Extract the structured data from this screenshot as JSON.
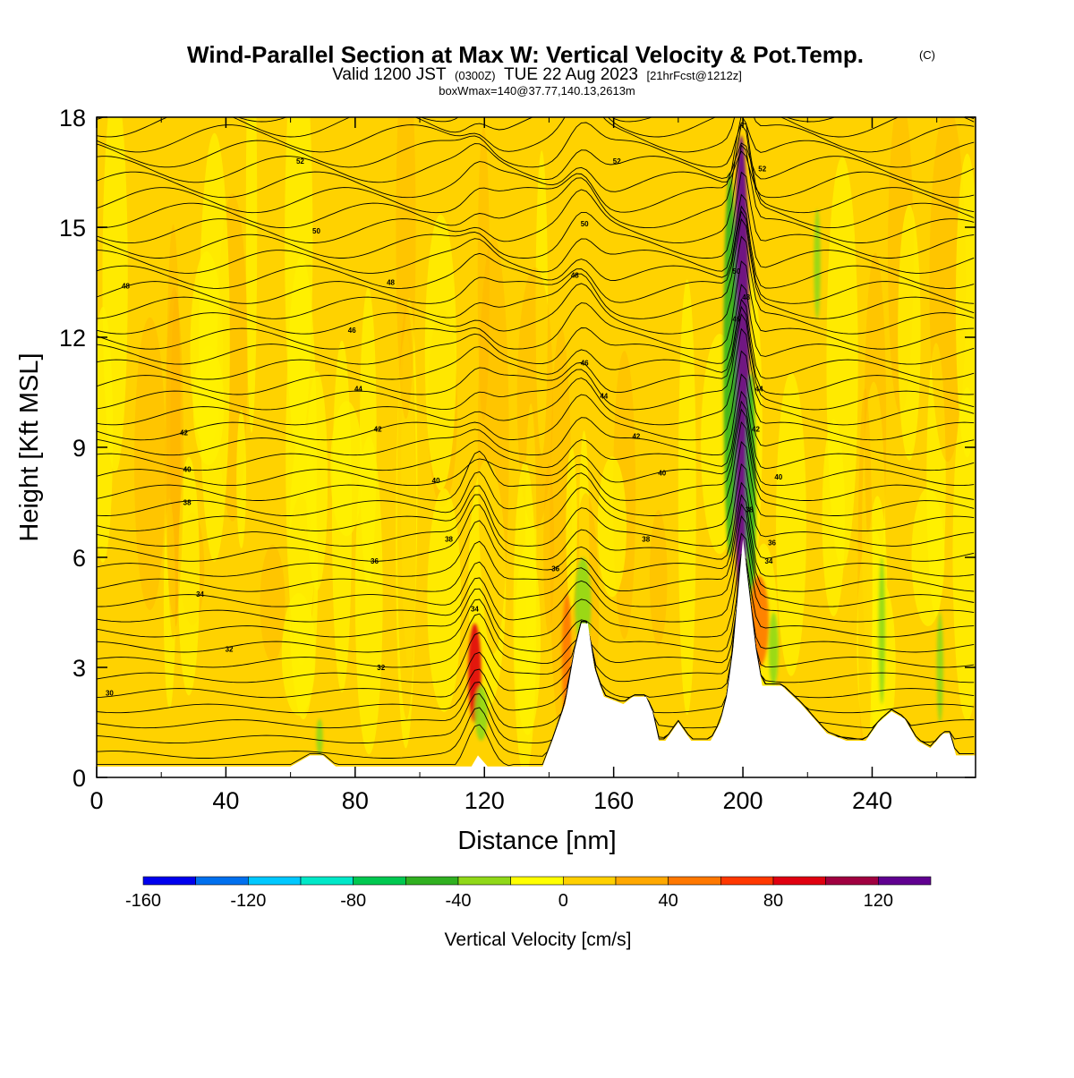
{
  "header": {
    "title": "Wind-Parallel Section at Max W: Vertical Velocity & Pot.Temp.",
    "title_mark": "(C)",
    "valid_main": "Valid 1200 JST",
    "valid_zulu": "(0300Z)",
    "valid_date": "TUE 22 Aug 2023",
    "forecast": "[21hrFcst@1212z]",
    "boxinfo": "boxWmax=140@37.77,140.13,2613m"
  },
  "chart_data": {
    "type": "heatmap",
    "xlabel": "Distance [nm]",
    "ylabel": "Height [Kft MSL]",
    "xlim": [
      0,
      272
    ],
    "ylim": [
      0,
      18
    ],
    "x_ticks": [
      "0",
      "40",
      "80",
      "120",
      "160",
      "200",
      "240"
    ],
    "y_ticks": [
      "0",
      "3",
      "6",
      "9",
      "12",
      "15",
      "18"
    ],
    "colorbar": {
      "title": "Vertical Velocity [cm/s]",
      "bounds": [
        -160,
        -140,
        -120,
        -100,
        -80,
        -60,
        -40,
        -20,
        0,
        20,
        40,
        60,
        80,
        100,
        120,
        140
      ],
      "labels": [
        "-160",
        "-120",
        "-80",
        "-40",
        "0",
        "40",
        "80",
        "120"
      ],
      "colors": [
        "#0000ee",
        "#0070ee",
        "#00c8ff",
        "#00e8c8",
        "#00c850",
        "#30b020",
        "#90d818",
        "#ffff00",
        "#ffd000",
        "#ffa800",
        "#ff7800",
        "#ff3800",
        "#e00010",
        "#a00040",
        "#600090"
      ]
    },
    "background_color": "#ffd200",
    "terrain_top_kft": [
      [
        0,
        0.3
      ],
      [
        60,
        0.3
      ],
      [
        66,
        0.6
      ],
      [
        70,
        0.6
      ],
      [
        74,
        0.3
      ],
      [
        116,
        0.3
      ],
      [
        118,
        0.6
      ],
      [
        121,
        0.3
      ],
      [
        138,
        0.3
      ],
      [
        141,
        1.0
      ],
      [
        145,
        2.0
      ],
      [
        148,
        3.5
      ],
      [
        150,
        4.2
      ],
      [
        152,
        4.2
      ],
      [
        154,
        3.0
      ],
      [
        157,
        2.2
      ],
      [
        163,
        2.0
      ],
      [
        166,
        2.2
      ],
      [
        170,
        2.2
      ],
      [
        172,
        1.8
      ],
      [
        174,
        1.0
      ],
      [
        176,
        1.0
      ],
      [
        180,
        1.5
      ],
      [
        184,
        1.0
      ],
      [
        190,
        1.0
      ],
      [
        193,
        1.5
      ],
      [
        195,
        2.2
      ],
      [
        197,
        3.5
      ],
      [
        199,
        5.5
      ],
      [
        200,
        6.5
      ],
      [
        202,
        5.0
      ],
      [
        204,
        3.5
      ],
      [
        206,
        2.5
      ],
      [
        210,
        2.5
      ],
      [
        212,
        2.5
      ],
      [
        218,
        2.0
      ],
      [
        222,
        1.6
      ],
      [
        226,
        1.2
      ],
      [
        232,
        1.0
      ],
      [
        238,
        1.0
      ],
      [
        242,
        1.5
      ],
      [
        246,
        1.8
      ],
      [
        250,
        1.6
      ],
      [
        254,
        1.0
      ],
      [
        258,
        0.8
      ],
      [
        262,
        1.2
      ],
      [
        264,
        1.2
      ],
      [
        266,
        0.6
      ],
      [
        272,
        0.6
      ]
    ],
    "velocity_features": [
      {
        "x": [
          115,
          119
        ],
        "y": [
          1.5,
          4.2
        ],
        "value": 90
      },
      {
        "x": [
          117,
          121
        ],
        "y": [
          1.0,
          2.5
        ],
        "value": -40
      },
      {
        "x": [
          197,
          202
        ],
        "y": [
          4.5,
          17.5
        ],
        "value": 120
      },
      {
        "x": [
          194,
          198
        ],
        "y": [
          6.0,
          16.5
        ],
        "value": -60
      },
      {
        "x": [
          201,
          204
        ],
        "y": [
          4.5,
          11.0
        ],
        "value": -50
      },
      {
        "x": [
          148,
          153
        ],
        "y": [
          3.5,
          6.0
        ],
        "value": -40
      },
      {
        "x": [
          222,
          224
        ],
        "y": [
          12.5,
          15.5
        ],
        "value": -30
      },
      {
        "x": [
          202,
          208
        ],
        "y": [
          3.0,
          5.5
        ],
        "value": 40
      },
      {
        "x": [
          144,
          147
        ],
        "y": [
          1.5,
          5.0
        ],
        "value": 50
      },
      {
        "x": [
          242,
          244
        ],
        "y": [
          2.0,
          6.0
        ],
        "value": -30
      },
      {
        "x": [
          68,
          70
        ],
        "y": [
          0.6,
          1.6
        ],
        "value": -30
      },
      {
        "x": [
          208,
          211
        ],
        "y": [
          2.5,
          4.5
        ],
        "value": -30
      },
      {
        "x": [
          260,
          262
        ],
        "y": [
          1.5,
          4.5
        ],
        "value": -30
      }
    ],
    "contour_labels": [
      {
        "x": 63,
        "y": 16.8,
        "text": "52"
      },
      {
        "x": 161,
        "y": 16.8,
        "text": "52"
      },
      {
        "x": 206,
        "y": 16.6,
        "text": "52"
      },
      {
        "x": 68,
        "y": 14.9,
        "text": "50"
      },
      {
        "x": 151,
        "y": 15.1,
        "text": "50"
      },
      {
        "x": 198,
        "y": 13.8,
        "text": "50"
      },
      {
        "x": 9,
        "y": 13.4,
        "text": "48"
      },
      {
        "x": 91,
        "y": 13.5,
        "text": "48"
      },
      {
        "x": 148,
        "y": 13.7,
        "text": "48"
      },
      {
        "x": 201,
        "y": 13.1,
        "text": "48"
      },
      {
        "x": 79,
        "y": 12.2,
        "text": "46"
      },
      {
        "x": 151,
        "y": 11.3,
        "text": "46"
      },
      {
        "x": 198,
        "y": 12.5,
        "text": "46"
      },
      {
        "x": 81,
        "y": 10.6,
        "text": "44"
      },
      {
        "x": 157,
        "y": 10.4,
        "text": "44"
      },
      {
        "x": 205,
        "y": 10.6,
        "text": "44"
      },
      {
        "x": 27,
        "y": 9.4,
        "text": "42"
      },
      {
        "x": 87,
        "y": 9.5,
        "text": "42"
      },
      {
        "x": 167,
        "y": 9.3,
        "text": "42"
      },
      {
        "x": 204,
        "y": 9.5,
        "text": "42"
      },
      {
        "x": 28,
        "y": 8.4,
        "text": "40"
      },
      {
        "x": 105,
        "y": 8.1,
        "text": "40"
      },
      {
        "x": 175,
        "y": 8.3,
        "text": "40"
      },
      {
        "x": 211,
        "y": 8.2,
        "text": "40"
      },
      {
        "x": 28,
        "y": 7.5,
        "text": "38"
      },
      {
        "x": 109,
        "y": 6.5,
        "text": "38"
      },
      {
        "x": 170,
        "y": 6.5,
        "text": "38"
      },
      {
        "x": 202,
        "y": 7.3,
        "text": "38"
      },
      {
        "x": 86,
        "y": 5.9,
        "text": "36"
      },
      {
        "x": 142,
        "y": 5.7,
        "text": "36"
      },
      {
        "x": 209,
        "y": 6.4,
        "text": "36"
      },
      {
        "x": 32,
        "y": 5.0,
        "text": "34"
      },
      {
        "x": 117,
        "y": 4.6,
        "text": "34"
      },
      {
        "x": 208,
        "y": 5.9,
        "text": "34"
      },
      {
        "x": 41,
        "y": 3.5,
        "text": "32"
      },
      {
        "x": 88,
        "y": 3.0,
        "text": "32"
      },
      {
        "x": 4,
        "y": 2.3,
        "text": "30"
      }
    ]
  }
}
